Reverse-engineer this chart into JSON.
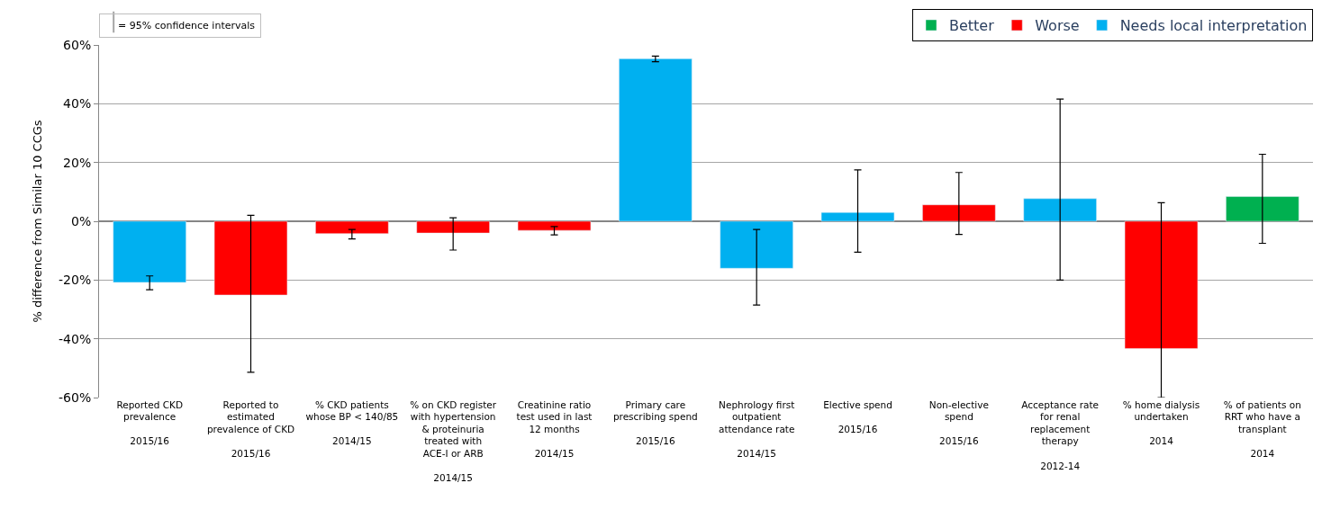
{
  "chart_data": {
    "type": "bar",
    "ylabel": "% difference from Similar 10 CCGs",
    "categories": [
      "Reported CKD prevalence\n2015/16",
      "Reported to estimated prevalence of CKD\n2015/16",
      "% CKD patients whose BP < 140/85\n2014/15",
      "% on CKD register with hypertension & proteinuria treated with ACE-I or ARB\n2014/15",
      "Creatinine ratio test used in last 12 months\n2014/15",
      "Primary care prescribing spend\n2015/16",
      "Nephrology first outpatient attendance rate\n2014/15",
      "Elective spend\n2015/16",
      "Non-elective spend\n2015/16",
      "Acceptance rate for renal replacement therapy\n2012-14",
      "% home dialysis undertaken\n2014",
      "% of patients on RRT who have a transplant\n2014"
    ],
    "series": [
      {
        "name": "Better",
        "color": "#00b050",
        "values": [
          null,
          null,
          null,
          null,
          null,
          null,
          null,
          null,
          null,
          null,
          null,
          8.4
        ],
        "errors": [
          null,
          null,
          null,
          null,
          null,
          null,
          null,
          null,
          null,
          null,
          null,
          [
            -7.5,
            22.8
          ]
        ]
      },
      {
        "name": "Worse",
        "color": "#ff0000",
        "values": [
          null,
          -25.1,
          -4.2,
          -4,
          -3.1,
          null,
          null,
          null,
          5.6,
          null,
          -43.3,
          null
        ],
        "errors": [
          null,
          [
            -51.4,
            2
          ],
          [
            -6,
            -2.8
          ],
          [
            -9.8,
            1.2
          ],
          [
            -4.6,
            -1.8
          ],
          null,
          null,
          null,
          [
            -4.5,
            16.6
          ],
          null,
          [
            -60,
            6.3
          ],
          null
        ]
      },
      {
        "name": "Needs local interpretation",
        "color": "#00b0f0",
        "values": [
          -20.8,
          null,
          null,
          null,
          null,
          55.3,
          -16,
          3,
          null,
          7.7,
          null,
          null
        ],
        "errors": [
          [
            -23.3,
            -18.6
          ],
          null,
          null,
          null,
          null,
          [
            54.3,
            56.2
          ],
          [
            -28.5,
            -2.8
          ],
          [
            -10.5,
            17.5
          ],
          null,
          [
            -20,
            41.6
          ],
          null,
          null
        ]
      }
    ],
    "ylim": [
      -60,
      60
    ],
    "yticks": [
      {
        "value": -60,
        "label": "-60%"
      },
      {
        "value": -40,
        "label": "-40%"
      },
      {
        "value": -20,
        "label": "-20%"
      },
      {
        "value": 0,
        "label": "0%"
      },
      {
        "value": 20,
        "label": "20%"
      },
      {
        "value": 40,
        "label": "40%"
      },
      {
        "value": 60,
        "label": "60%"
      }
    ],
    "grid": "y",
    "legend": "top right",
    "annotations": [
      "= 95% confidence intervals"
    ]
  }
}
